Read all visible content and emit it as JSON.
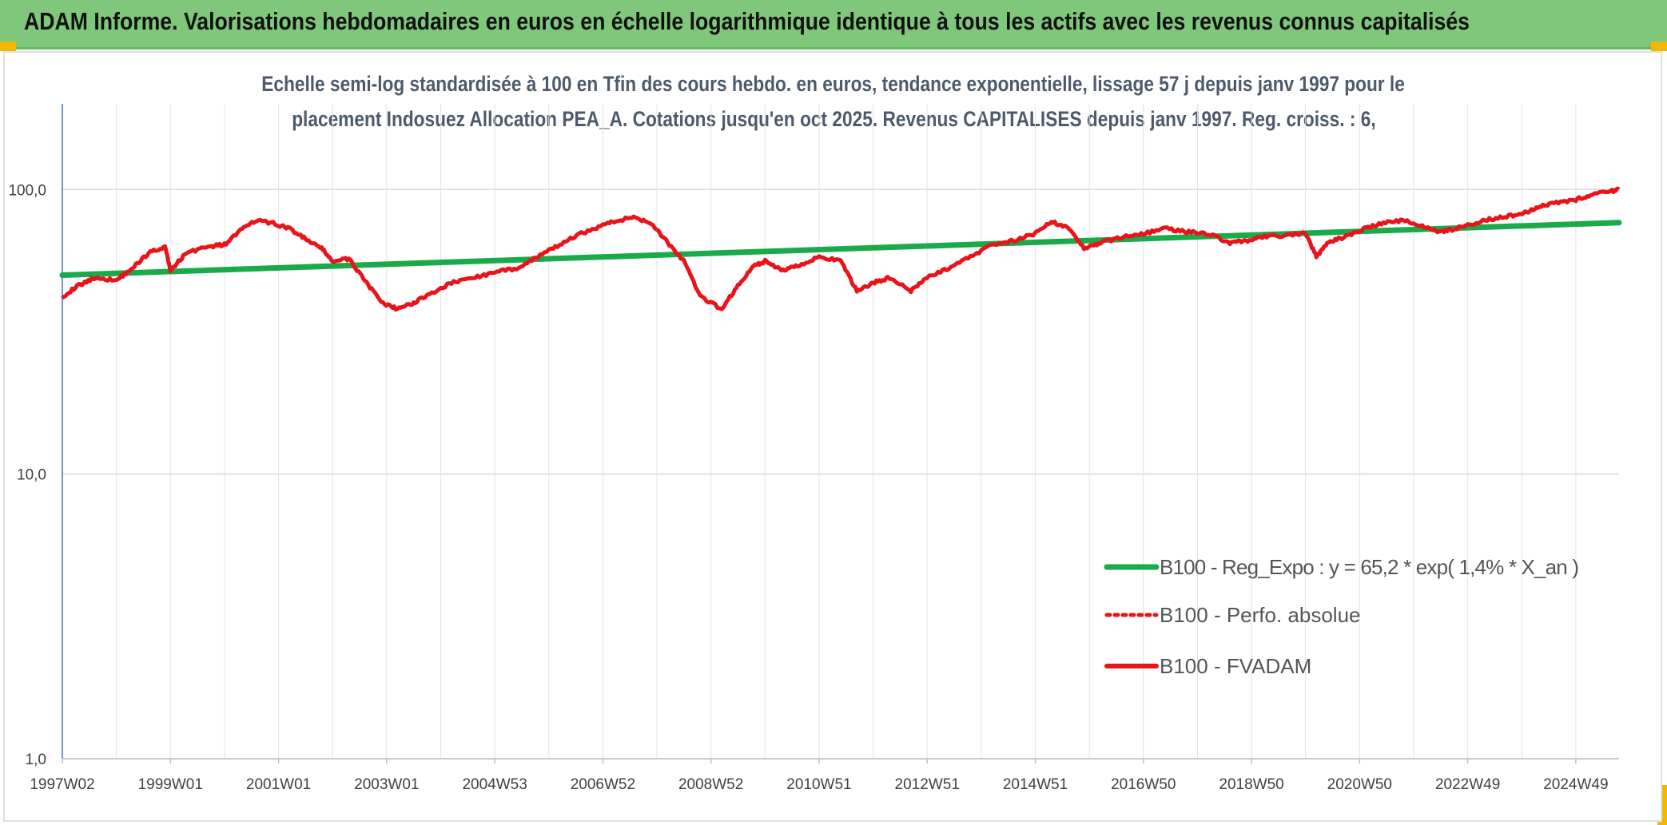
{
  "header": {
    "title": "ADAM Informe. Valorisations hebdomadaires en euros en échelle logarithmique identique à tous les actifs avec les revenus connus capitalisés"
  },
  "colors": {
    "header_bg": "#7fc77a",
    "trend": "#1aaa4a",
    "series": "#e8141a",
    "accent_corner": "#f2b705"
  },
  "chart_data": {
    "type": "line",
    "title_line1": "Echelle semi-log standardisée à 100 en Tfin des cours hebdo. en euros, tendance exponentielle, lissage 57 j depuis janv 1997 pour le",
    "title_line2": "placement Indosuez Allocation PEA_A. Cotations jusqu'en oct 2025. Revenus CAPITALISES depuis janv 1997. Reg. croiss. : 6,",
    "y_scale": "log",
    "ylim": [
      1,
      200
    ],
    "y_ticks": [
      {
        "value": 1,
        "label": "1,0"
      },
      {
        "value": 10,
        "label": "10,0"
      },
      {
        "value": 100,
        "label": "100,0"
      }
    ],
    "x_range": [
      1997.0,
      2025.8
    ],
    "x_ticks": [
      {
        "value": 1997.0,
        "label": "1997W02"
      },
      {
        "value": 1999.0,
        "label": "1999W01"
      },
      {
        "value": 2001.0,
        "label": "2001W01"
      },
      {
        "value": 2003.0,
        "label": "2003W01"
      },
      {
        "value": 2005.0,
        "label": "2004W53"
      },
      {
        "value": 2007.0,
        "label": "2006W52"
      },
      {
        "value": 2009.0,
        "label": "2008W52"
      },
      {
        "value": 2011.0,
        "label": "2010W51"
      },
      {
        "value": 2013.0,
        "label": "2012W51"
      },
      {
        "value": 2015.0,
        "label": "2014W51"
      },
      {
        "value": 2017.0,
        "label": "2016W50"
      },
      {
        "value": 2019.0,
        "label": "2018W50"
      },
      {
        "value": 2021.0,
        "label": "2020W50"
      },
      {
        "value": 2023.0,
        "label": "2022W49"
      },
      {
        "value": 2025.0,
        "label": "2024W49"
      }
    ],
    "grid": "vertical and horizontal",
    "legend_position": "bottom-right",
    "series": [
      {
        "name": "B100 - Reg_Expo : y = 65,2 * exp( 1,4% *  X_an )",
        "style": "solid",
        "x": [
          1997.0,
          2025.8
        ],
        "values": [
          50.0,
          76.5
        ]
      },
      {
        "name": "B100 - Perfo. absolue",
        "style": "dotted",
        "x": [],
        "values": []
      },
      {
        "name": "B100 - FVADAM",
        "style": "solid",
        "x": [
          1997.0,
          1997.3,
          1997.6,
          1998.0,
          1998.3,
          1998.6,
          1998.9,
          1999.0,
          1999.3,
          1999.7,
          2000.0,
          2000.3,
          2000.6,
          2000.9,
          2001.2,
          2001.5,
          2001.8,
          2002.0,
          2002.3,
          2002.6,
          2002.9,
          2003.2,
          2003.5,
          2003.8,
          2004.2,
          2004.6,
          2005.0,
          2005.4,
          2005.8,
          2006.2,
          2006.6,
          2007.0,
          2007.3,
          2007.6,
          2007.9,
          2008.2,
          2008.5,
          2008.8,
          2009.2,
          2009.5,
          2009.8,
          2010.0,
          2010.3,
          2010.6,
          2011.0,
          2011.4,
          2011.7,
          2012.0,
          2012.3,
          2012.7,
          2013.0,
          2013.4,
          2013.8,
          2014.2,
          2014.6,
          2015.0,
          2015.3,
          2015.6,
          2015.9,
          2016.2,
          2016.6,
          2017.0,
          2017.4,
          2017.8,
          2018.2,
          2018.6,
          2018.9,
          2019.2,
          2019.6,
          2020.0,
          2020.2,
          2020.4,
          2020.7,
          2021.0,
          2021.4,
          2021.8,
          2022.2,
          2022.5,
          2022.8,
          2023.2,
          2023.6,
          2024.0,
          2024.3,
          2024.6,
          2025.0,
          2025.3,
          2025.6,
          2025.8
        ],
        "values": [
          42.0,
          46.0,
          49.0,
          48.0,
          53.0,
          60.0,
          63.0,
          52.0,
          60.0,
          63.0,
          64.0,
          72.0,
          78.0,
          76.0,
          73.0,
          67.0,
          62.0,
          56.0,
          57.0,
          48.0,
          40.0,
          38.0,
          40.0,
          43.0,
          47.0,
          49.0,
          51.0,
          53.0,
          58.0,
          64.0,
          70.0,
          75.0,
          78.0,
          80.0,
          76.0,
          65.0,
          56.0,
          42.0,
          38.0,
          46.0,
          54.0,
          56.0,
          52.0,
          54.0,
          58.0,
          56.0,
          44.0,
          47.0,
          49.0,
          44.0,
          49.0,
          53.0,
          58.0,
          64.0,
          66.0,
          70.0,
          77.0,
          74.0,
          62.0,
          65.0,
          68.0,
          70.0,
          73.0,
          71.0,
          70.0,
          65.0,
          66.0,
          68.0,
          69.0,
          70.0,
          58.0,
          65.0,
          68.0,
          72.0,
          76.0,
          78.0,
          74.0,
          71.0,
          73.0,
          77.0,
          80.0,
          82.0,
          87.0,
          90.0,
          92.0,
          96.0,
          98.0,
          100.0
        ]
      }
    ]
  }
}
